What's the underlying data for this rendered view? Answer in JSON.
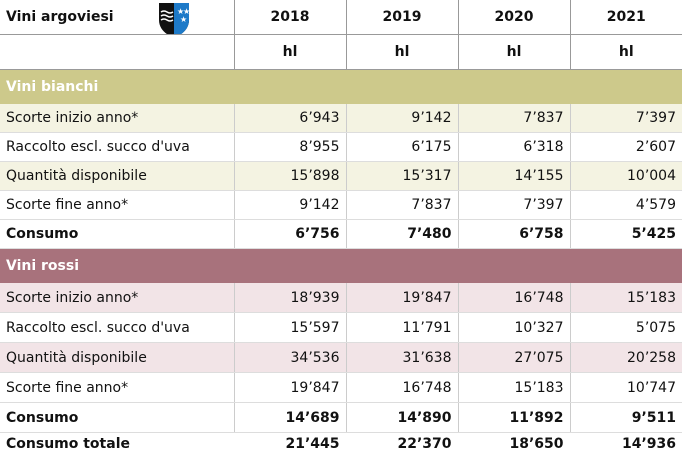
{
  "header": {
    "title": "Vini argoviesi",
    "years": [
      "2018",
      "2019",
      "2020",
      "2021"
    ],
    "units": [
      "hl",
      "hl",
      "hl",
      "hl"
    ]
  },
  "sections": [
    {
      "title": "Vini bianchi",
      "rows": [
        {
          "label": "Scorte inizio anno*",
          "values": [
            "6’943",
            "9’142",
            "7’837",
            "7’397"
          ]
        },
        {
          "label": "Raccolto escl. succo d'uva",
          "values": [
            "8’955",
            "6’175",
            "6’318",
            "2’607"
          ]
        },
        {
          "label": "Quantità disponibile",
          "values": [
            "15’898",
            "15’317",
            "14’155",
            "10’004"
          ]
        },
        {
          "label": "Scorte fine anno*",
          "values": [
            "9’142",
            "7’837",
            "7’397",
            "4’579"
          ]
        },
        {
          "label": "Consumo",
          "values": [
            "6’756",
            "7’480",
            "6’758",
            "5’425"
          ]
        }
      ]
    },
    {
      "title": "Vini rossi",
      "rows": [
        {
          "label": "Scorte inizio anno*",
          "values": [
            "18’939",
            "19’847",
            "16’748",
            "15’183"
          ]
        },
        {
          "label": "Raccolto escl. succo d'uva",
          "values": [
            "15’597",
            "11’791",
            "10’327",
            "5’075"
          ]
        },
        {
          "label": "Quantità disponibile",
          "values": [
            "34’536",
            "31’638",
            "27’075",
            "20’258"
          ]
        },
        {
          "label": "Scorte fine anno*",
          "values": [
            "19’847",
            "16’748",
            "15’183",
            "10’747"
          ]
        },
        {
          "label": "Consumo",
          "values": [
            "14’689",
            "14’890",
            "11’892",
            "9’511"
          ]
        }
      ]
    }
  ],
  "total": {
    "label": "Consumo totale",
    "values": [
      "21’445",
      "22’370",
      "18’650",
      "14’936"
    ]
  }
}
